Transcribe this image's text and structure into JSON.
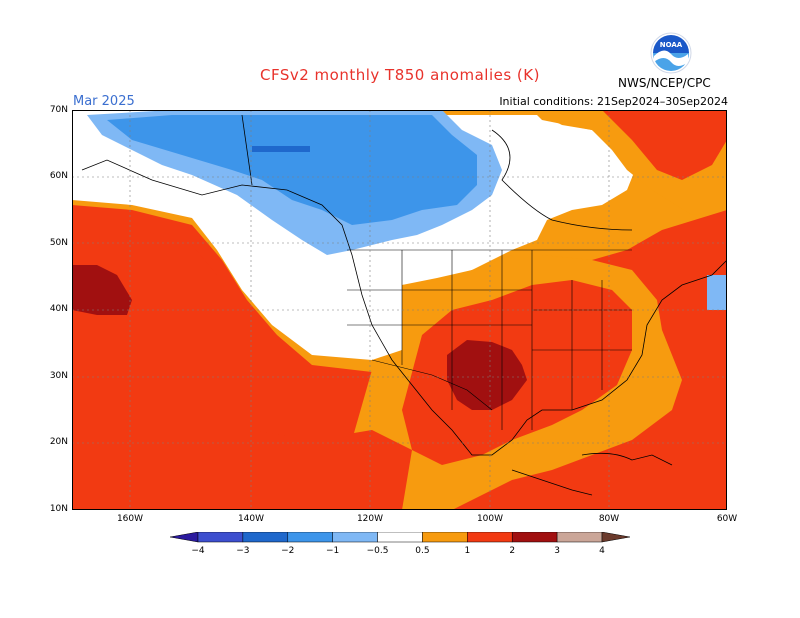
{
  "title": "CFSv2 monthly T850 anomalies (K)",
  "month": "Mar 2025",
  "initial_conditions": "Initial conditions: 21Sep2024–30Sep2024",
  "agency": "NWS/NCEP/CPC",
  "logo_text": "NOAA",
  "lat_labels": [
    "70N",
    "60N",
    "50N",
    "40N",
    "30N",
    "20N",
    "10N"
  ],
  "lon_labels": [
    "160W",
    "140W",
    "120W",
    "100W",
    "80W",
    "60W"
  ],
  "legend": {
    "labels": [
      "−4",
      "−3",
      "−2",
      "−1",
      "−0.5",
      "0.5",
      "1",
      "2",
      "3",
      "4"
    ],
    "colors": [
      "#2b1a9e",
      "#3d4fcf",
      "#1f68cc",
      "#3d95ea",
      "#7fb8f5",
      "#ffffff",
      "#f79b0f",
      "#f23a12",
      "#a11010",
      "#cba698",
      "#6b3a2c"
    ]
  },
  "palette": {
    "cold_strong": "#3d95ea",
    "cold_weak": "#7fb8f5",
    "cold_core": "#1f68cc",
    "warm_weak": "#f79b0f",
    "warm_mid": "#f23a12",
    "warm_strong": "#a11010"
  }
}
